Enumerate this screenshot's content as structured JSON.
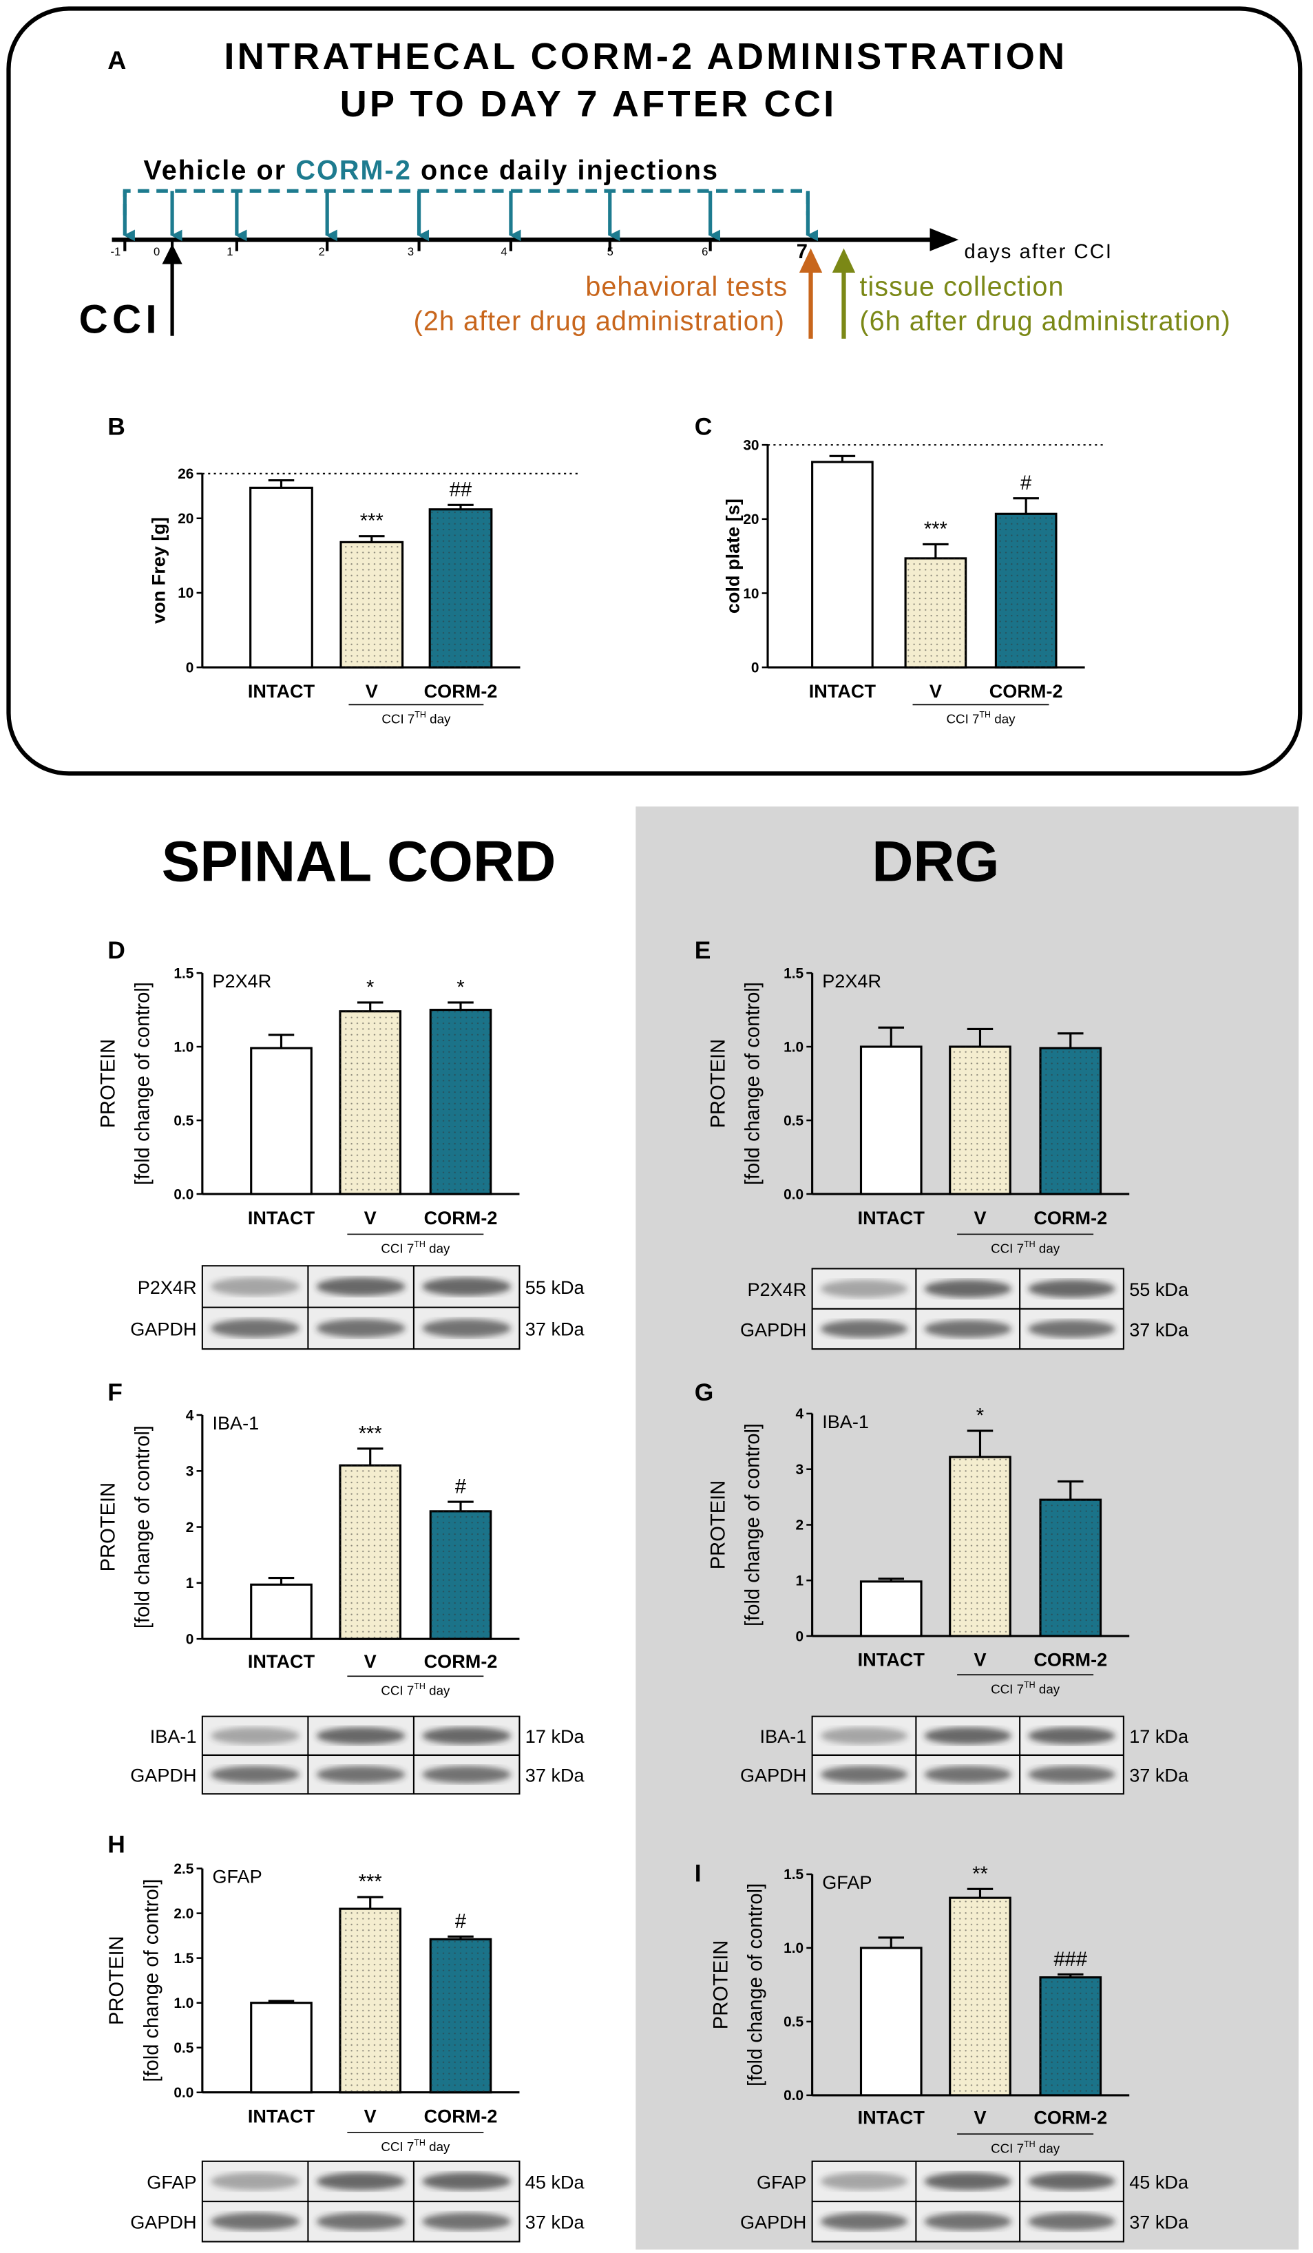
{
  "diagram": {
    "letter": "A",
    "title": [
      "INTRATHECAL CORM-2 ADMINISTRATION",
      "UP TO DAY 7 AFTER CCI"
    ],
    "injection_text": [
      "Vehicle or ",
      "CORM-2",
      " once daily injections"
    ],
    "days": [
      "-1",
      "0",
      "1",
      "2",
      "3",
      "4",
      "5",
      "6",
      "7"
    ],
    "axis_label": "days after CCI",
    "cci": "CCI",
    "behavioral": [
      "behavioral tests",
      "(2h after drug administration)"
    ],
    "tissue": [
      "tissue collection",
      "(6h after drug administration)"
    ],
    "sections": [
      "SPINAL CORD",
      "DRG"
    ]
  },
  "chart_data": [
    {
      "type": "bar",
      "panel": "B",
      "ylabel": [
        "von Frey [g]"
      ],
      "categories": [
        "INTACT",
        "V",
        "CORM-2"
      ],
      "values": [
        24.1,
        16.8,
        21.2
      ],
      "errors": [
        1.0,
        0.8,
        0.6
      ],
      "annotations": [
        null,
        "***",
        "##"
      ],
      "colors": [
        "#ffffff",
        "#f4edcf",
        "#1b7389"
      ],
      "hatch": [
        "none",
        "dots",
        "dots"
      ],
      "ylim": [
        0,
        26
      ],
      "yticks": [
        0,
        10,
        20,
        26
      ],
      "reference_line": 26,
      "group_label": [
        "CCI 7",
        "TH",
        " day"
      ]
    },
    {
      "type": "bar",
      "panel": "C",
      "ylabel": [
        "cold plate [s]"
      ],
      "categories": [
        "INTACT",
        "V",
        "CORM-2"
      ],
      "values": [
        27.7,
        14.7,
        20.7
      ],
      "errors": [
        0.8,
        1.9,
        2.1
      ],
      "annotations": [
        null,
        "***",
        "#"
      ],
      "colors": [
        "#ffffff",
        "#f4edcf",
        "#1b7389"
      ],
      "hatch": [
        "none",
        "dots",
        "dots"
      ],
      "ylim": [
        0,
        30
      ],
      "yticks": [
        0,
        10,
        20,
        30
      ],
      "reference_line": 30,
      "group_label": [
        "CCI 7",
        "TH",
        " day"
      ]
    },
    {
      "type": "bar",
      "panel": "D",
      "title": "P2X4R",
      "ylabel": [
        "PROTEIN",
        "[fold change of control]"
      ],
      "categories": [
        "INTACT",
        "V",
        "CORM-2"
      ],
      "values": [
        0.99,
        1.24,
        1.25
      ],
      "errors": [
        0.09,
        0.06,
        0.05
      ],
      "annotations": [
        null,
        "*",
        "*"
      ],
      "colors": [
        "#ffffff",
        "#f4edcf",
        "#1b7389"
      ],
      "hatch": [
        "none",
        "dots",
        "dots"
      ],
      "ylim": [
        0,
        1.5
      ],
      "yticks": [
        {
          "value": 0,
          "label": "0.0"
        },
        0.5,
        {
          "value": 1,
          "label": "1.0"
        },
        1.5
      ],
      "group_label": [
        "CCI 7",
        "TH",
        "   day"
      ],
      "blot": {
        "labels": [
          "P2X4R",
          "GAPDH"
        ],
        "sizes": [
          "55 kDa",
          "37 kDa"
        ]
      }
    },
    {
      "type": "bar",
      "panel": "E",
      "title": "P2X4R",
      "ylabel": [
        "PROTEIN",
        "[fold change of control]"
      ],
      "categories": [
        "INTACT",
        "V",
        "CORM-2"
      ],
      "values": [
        1.0,
        1.0,
        0.99
      ],
      "errors": [
        0.13,
        0.12,
        0.1
      ],
      "annotations": [
        null,
        null,
        null
      ],
      "colors": [
        "#ffffff",
        "#f4edcf",
        "#1b7389"
      ],
      "hatch": [
        "none",
        "dots",
        "dots"
      ],
      "ylim": [
        0,
        1.5
      ],
      "yticks": [
        {
          "value": 0,
          "label": "0.0"
        },
        0.5,
        {
          "value": 1,
          "label": "1.0"
        },
        1.5
      ],
      "group_label": [
        "CCI 7",
        "TH",
        "   day"
      ],
      "blot": {
        "labels": [
          "P2X4R",
          "GAPDH"
        ],
        "sizes": [
          "55 kDa",
          "37 kDa"
        ]
      }
    },
    {
      "type": "bar",
      "panel": "F",
      "title": "IBA-1",
      "ylabel": [
        "PROTEIN",
        "[fold change of control]"
      ],
      "categories": [
        "INTACT",
        "V",
        "CORM-2"
      ],
      "values": [
        0.97,
        3.1,
        2.28
      ],
      "errors": [
        0.12,
        0.3,
        0.17
      ],
      "annotations": [
        null,
        "***",
        "#"
      ],
      "colors": [
        "#ffffff",
        "#f4edcf",
        "#1b7389"
      ],
      "hatch": [
        "none",
        "dots",
        "dots"
      ],
      "ylim": [
        0,
        4
      ],
      "yticks": [
        0,
        1,
        2,
        3,
        4
      ],
      "group_label": [
        "CCI 7",
        "TH",
        "   day"
      ],
      "blot": {
        "labels": [
          "IBA-1",
          "GAPDH"
        ],
        "sizes": [
          "17 kDa",
          "37 kDa"
        ]
      }
    },
    {
      "type": "bar",
      "panel": "G",
      "title": "IBA-1",
      "ylabel": [
        "PROTEIN",
        "[fold change of control]"
      ],
      "categories": [
        "INTACT",
        "V",
        "CORM-2"
      ],
      "values": [
        0.98,
        3.22,
        2.45
      ],
      "errors": [
        0.05,
        0.47,
        0.33
      ],
      "annotations": [
        null,
        "*",
        null
      ],
      "colors": [
        "#ffffff",
        "#f4edcf",
        "#1b7389"
      ],
      "hatch": [
        "none",
        "dots",
        "dots"
      ],
      "ylim": [
        0,
        4
      ],
      "yticks": [
        0,
        1,
        2,
        3,
        4
      ],
      "group_label": [
        "CCI 7",
        "TH",
        "   day"
      ],
      "blot": {
        "labels": [
          "IBA-1",
          "GAPDH"
        ],
        "sizes": [
          "17 kDa",
          "37 kDa"
        ]
      }
    },
    {
      "type": "bar",
      "panel": "H",
      "title": "GFAP",
      "ylabel": [
        "PROTEIN",
        "[fold change of control]"
      ],
      "categories": [
        "INTACT",
        "V",
        "CORM-2"
      ],
      "values": [
        1.0,
        2.05,
        1.71
      ],
      "errors": [
        0.02,
        0.13,
        0.03
      ],
      "annotations": [
        null,
        "***",
        "#"
      ],
      "colors": [
        "#ffffff",
        "#f4edcf",
        "#1b7389"
      ],
      "hatch": [
        "none",
        "dots",
        "dots"
      ],
      "ylim": [
        0,
        2.5
      ],
      "yticks": [
        {
          "value": 0,
          "label": "0.0"
        },
        0.5,
        {
          "value": 1,
          "label": "1.0"
        },
        1.5,
        {
          "value": 2,
          "label": "2.0"
        },
        2.5
      ],
      "group_label": [
        "CCI 7",
        "TH",
        "   day"
      ],
      "blot": {
        "labels": [
          "GFAP",
          "GAPDH"
        ],
        "sizes": [
          "45 kDa",
          "37 kDa"
        ]
      }
    },
    {
      "type": "bar",
      "panel": "I",
      "title": "GFAP",
      "ylabel": [
        "PROTEIN",
        "[fold change of control]"
      ],
      "categories": [
        "INTACT",
        "V",
        "CORM-2"
      ],
      "values": [
        1.0,
        1.34,
        0.8
      ],
      "errors": [
        0.07,
        0.06,
        0.02
      ],
      "annotations": [
        null,
        "**",
        "###"
      ],
      "colors": [
        "#ffffff",
        "#f4edcf",
        "#1b7389"
      ],
      "hatch": [
        "none",
        "dots",
        "dots"
      ],
      "ylim": [
        0,
        1.5
      ],
      "yticks": [
        {
          "value": 0,
          "label": "0.0"
        },
        0.5,
        {
          "value": 1,
          "label": "1.0"
        },
        1.5
      ],
      "group_label": [
        "CCI 7",
        "TH",
        "   day"
      ],
      "blot": {
        "labels": [
          "GFAP",
          "GAPDH"
        ],
        "sizes": [
          "45 kDa",
          "37 kDa"
        ]
      }
    }
  ]
}
